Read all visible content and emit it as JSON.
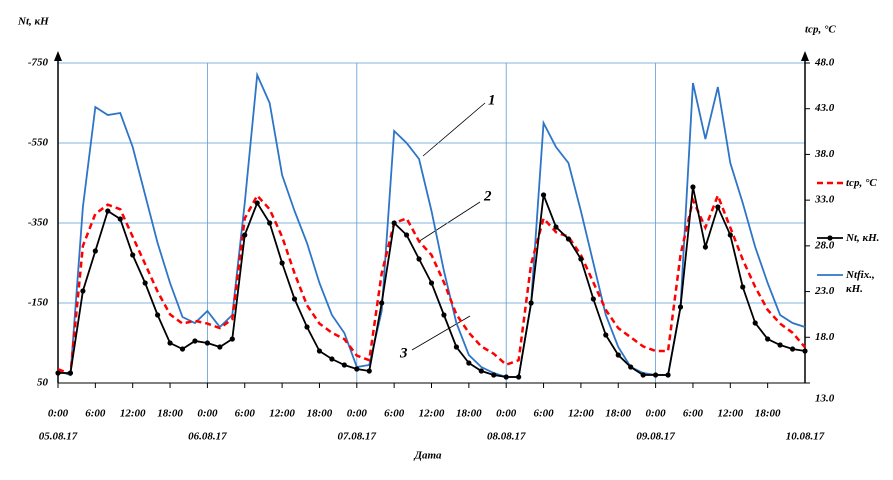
{
  "chart_data": {
    "type": "line",
    "y_label": "Nt, кН",
    "y2_label": "tcp, °C",
    "x_label": "Дата",
    "annotations": [
      "1",
      "2",
      "3"
    ],
    "x": [
      0,
      2,
      4,
      6,
      8,
      10,
      12,
      14,
      16,
      18,
      20,
      22,
      24,
      26,
      28,
      30,
      32,
      34,
      36,
      38,
      40,
      42,
      44,
      46,
      48,
      50,
      52,
      54,
      56,
      58,
      60,
      62,
      64,
      66,
      68,
      70,
      72,
      74,
      76,
      78,
      80,
      82,
      84,
      86,
      88,
      90,
      92,
      94,
      96,
      98,
      100,
      102,
      104,
      106,
      108,
      110,
      112,
      114,
      116,
      118,
      120
    ],
    "xlim": [
      0,
      120
    ],
    "xticks": [
      {
        "value": 0,
        "label": "0:00"
      },
      {
        "value": 6,
        "label": "6:00"
      },
      {
        "value": 12,
        "label": "12:00"
      },
      {
        "value": 18,
        "label": "18:00"
      },
      {
        "value": 24,
        "label": "0:00"
      },
      {
        "value": 30,
        "label": "6:00"
      },
      {
        "value": 36,
        "label": "12:00"
      },
      {
        "value": 42,
        "label": "18:00"
      },
      {
        "value": 48,
        "label": "0:00"
      },
      {
        "value": 54,
        "label": "6:00"
      },
      {
        "value": 60,
        "label": "12:00"
      },
      {
        "value": 66,
        "label": "18:00"
      },
      {
        "value": 72,
        "label": "0:00"
      },
      {
        "value": 78,
        "label": "6:00"
      },
      {
        "value": 84,
        "label": "12:00"
      },
      {
        "value": 90,
        "label": "18:00"
      },
      {
        "value": 96,
        "label": "0:00"
      },
      {
        "value": 102,
        "label": "6:00"
      },
      {
        "value": 108,
        "label": "12:00"
      },
      {
        "value": 114,
        "label": "18:00"
      }
    ],
    "date_ticks": [
      {
        "value": 0,
        "label": "05.08.17"
      },
      {
        "value": 24,
        "label": "06.08.17"
      },
      {
        "value": 48,
        "label": "07.08.17"
      },
      {
        "value": 72,
        "label": "08.08.17"
      },
      {
        "value": 96,
        "label": "09.08.17"
      },
      {
        "value": 120,
        "label": "10.08.17"
      }
    ],
    "ylim": [
      50,
      -750
    ],
    "yticks": [
      50,
      -150,
      -350,
      -550,
      -750
    ],
    "y2lim": [
      13,
      48
    ],
    "y2ticks": [
      {
        "value": 48,
        "label": "48.0"
      },
      {
        "value": 43,
        "label": "43.0"
      },
      {
        "value": 38,
        "label": "38.0"
      },
      {
        "value": 33,
        "label": "33.0"
      },
      {
        "value": 28,
        "label": "28.0"
      },
      {
        "value": 23,
        "label": "23.0"
      },
      {
        "value": 18,
        "label": "18.0"
      },
      {
        "value": 13,
        "label": "13.0"
      }
    ],
    "grid": true,
    "series": [
      {
        "name": "Ntfix., кН.",
        "color": "#2e75c8",
        "values": [
          20,
          30,
          -390,
          -640,
          -620,
          -625,
          -540,
          -420,
          -300,
          -200,
          -115,
          -100,
          -130,
          -90,
          -120,
          -400,
          -720,
          -650,
          -470,
          -380,
          -300,
          -200,
          -120,
          -75,
          10,
          5,
          -130,
          -580,
          -550,
          -510,
          -380,
          -230,
          -100,
          -20,
          10,
          25,
          35,
          35,
          -150,
          -600,
          -540,
          -500,
          -380,
          -250,
          -120,
          -40,
          10,
          25,
          30,
          30,
          -140,
          -700,
          -560,
          -690,
          -500,
          -400,
          -290,
          -200,
          -120,
          -100,
          -90
        ]
      },
      {
        "name": "Nt, кН.",
        "color": "#000000",
        "marker": true,
        "values": [
          25,
          25,
          -180,
          -280,
          -380,
          -360,
          -270,
          -200,
          -120,
          -50,
          -35,
          -55,
          -50,
          -40,
          -60,
          -320,
          -400,
          -350,
          -250,
          -160,
          -90,
          -30,
          -10,
          5,
          15,
          20,
          -150,
          -350,
          -320,
          -260,
          -200,
          -120,
          -40,
          0,
          20,
          30,
          35,
          35,
          -150,
          -420,
          -340,
          -310,
          -260,
          -160,
          -70,
          -20,
          10,
          30,
          30,
          30,
          -140,
          -440,
          -290,
          -390,
          -320,
          -190,
          -100,
          -60,
          -45,
          -35,
          -30
        ]
      },
      {
        "name": "tcp, °C",
        "color": "#ff0000",
        "dashed": true,
        "axis": "y2",
        "values": [
          14.5,
          14,
          28,
          31.5,
          32.5,
          32,
          29,
          26,
          23,
          20.5,
          19.5,
          19.8,
          19.5,
          19,
          20,
          31,
          33.5,
          32,
          29,
          25,
          21.5,
          19.5,
          18.5,
          17.8,
          16,
          15.5,
          25,
          30.5,
          31,
          28.5,
          27,
          24,
          20.5,
          18.5,
          17,
          16.2,
          15,
          15.5,
          26,
          31,
          29.5,
          29,
          27,
          24,
          21,
          19,
          18,
          17,
          16.5,
          16.5,
          27,
          33,
          30,
          33.5,
          30,
          26.5,
          23.5,
          21,
          19.5,
          18.5,
          16.9
        ]
      }
    ],
    "legend": [
      2,
      1,
      0
    ]
  }
}
